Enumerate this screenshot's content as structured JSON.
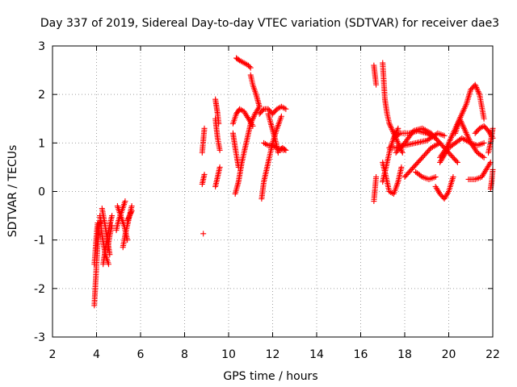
{
  "chart_data": {
    "type": "scatter",
    "title": "Day 337 of 2019, Sidereal Day-to-day VTEC variation (SDTVAR) for receiver dae3",
    "xlabel": "GPS time / hours",
    "ylabel": "SDTVAR / TECUs",
    "xlim": [
      2,
      22
    ],
    "ylim": [
      -3,
      3
    ],
    "xticks": [
      "2",
      "4",
      "6",
      "8",
      "10",
      "12",
      "14",
      "16",
      "18",
      "20",
      "22"
    ],
    "yticks": [
      "-3",
      "-2",
      "-1",
      "0",
      "1",
      "2",
      "3"
    ],
    "grid": true,
    "legend": "none",
    "marker": "+",
    "series_color": "#ff0000",
    "tracks": [
      {
        "name": "t1",
        "x": [
          3.9,
          4.0,
          4.1,
          4.2
        ],
        "y": [
          -2.35,
          -1.5,
          -0.7,
          -0.6
        ]
      },
      {
        "name": "t2",
        "x": [
          3.9,
          4.0,
          4.05
        ],
        "y": [
          -1.5,
          -0.9,
          -0.65
        ]
      },
      {
        "name": "t3",
        "x": [
          4.15,
          4.25,
          4.4,
          4.55
        ],
        "y": [
          -0.5,
          -0.9,
          -1.3,
          -1.5
        ]
      },
      {
        "name": "t4",
        "x": [
          4.25,
          4.35,
          4.5,
          4.6
        ],
        "y": [
          -0.35,
          -0.6,
          -1.0,
          -1.3
        ]
      },
      {
        "name": "t5",
        "x": [
          4.3,
          4.4,
          4.55,
          4.7
        ],
        "y": [
          -1.5,
          -1.2,
          -0.8,
          -0.5
        ]
      },
      {
        "name": "t6",
        "x": [
          4.5,
          4.6,
          4.7
        ],
        "y": [
          -1.2,
          -0.9,
          -0.7
        ]
      },
      {
        "name": "t7",
        "x": [
          4.9,
          5.0,
          5.15,
          5.3
        ],
        "y": [
          -0.8,
          -0.6,
          -0.4,
          -0.2
        ]
      },
      {
        "name": "t8",
        "x": [
          4.95,
          5.1,
          5.25,
          5.4
        ],
        "y": [
          -0.3,
          -0.5,
          -0.7,
          -1.0
        ]
      },
      {
        "name": "t9",
        "x": [
          5.2,
          5.3,
          5.45,
          5.6
        ],
        "y": [
          -1.15,
          -0.9,
          -0.6,
          -0.3
        ]
      },
      {
        "name": "t10",
        "x": [
          5.4,
          5.5,
          5.6
        ],
        "y": [
          -0.6,
          -0.5,
          -0.4
        ]
      },
      {
        "name": "t11",
        "x": [
          8.8,
          8.85,
          8.9
        ],
        "y": [
          0.15,
          0.25,
          0.35
        ]
      },
      {
        "name": "t12",
        "x": [
          8.8,
          8.85,
          8.9
        ],
        "y": [
          0.8,
          1.05,
          1.3
        ]
      },
      {
        "name": "t13",
        "x": [
          8.85
        ],
        "y": [
          -0.87
        ]
      },
      {
        "name": "t14",
        "x": [
          9.4,
          9.45,
          9.5,
          9.55
        ],
        "y": [
          1.9,
          1.75,
          1.6,
          1.4
        ]
      },
      {
        "name": "t15",
        "x": [
          9.4,
          9.5,
          9.6
        ],
        "y": [
          1.5,
          1.1,
          0.85
        ]
      },
      {
        "name": "t16",
        "x": [
          9.4,
          9.5,
          9.6
        ],
        "y": [
          0.1,
          0.3,
          0.5
        ]
      },
      {
        "name": "t17",
        "x": [
          10.2,
          10.35,
          10.5,
          10.7,
          10.9,
          11.1
        ],
        "y": [
          1.4,
          1.6,
          1.7,
          1.65,
          1.5,
          1.35
        ]
      },
      {
        "name": "t18",
        "x": [
          10.2,
          10.3,
          10.45
        ],
        "y": [
          1.2,
          0.9,
          0.5
        ]
      },
      {
        "name": "t19",
        "x": [
          10.3,
          10.45,
          10.6,
          10.8,
          11.0,
          11.2,
          11.4
        ],
        "y": [
          -0.05,
          0.2,
          0.6,
          1.0,
          1.4,
          1.6,
          1.75
        ]
      },
      {
        "name": "t20",
        "x": [
          10.35,
          10.5,
          10.7,
          10.9,
          11.0
        ],
        "y": [
          2.75,
          2.7,
          2.65,
          2.6,
          2.55
        ]
      },
      {
        "name": "t21",
        "x": [
          11.0,
          11.1,
          11.25,
          11.4
        ],
        "y": [
          2.4,
          2.2,
          2.0,
          1.75
        ]
      },
      {
        "name": "t22",
        "x": [
          11.5,
          11.6,
          11.8,
          12.0,
          12.2,
          12.4
        ],
        "y": [
          -0.15,
          0.2,
          0.6,
          1.0,
          1.3,
          1.55
        ]
      },
      {
        "name": "t23",
        "x": [
          11.4,
          11.6,
          11.8,
          12.0,
          12.2,
          12.4,
          12.6
        ],
        "y": [
          1.6,
          1.7,
          1.7,
          1.6,
          1.7,
          1.75,
          1.7
        ]
      },
      {
        "name": "t24",
        "x": [
          11.6,
          11.8,
          12.0,
          12.2,
          12.5
        ],
        "y": [
          1.0,
          0.95,
          0.95,
          0.9,
          0.85
        ]
      },
      {
        "name": "t25",
        "x": [
          11.8,
          11.95,
          12.1,
          12.25
        ],
        "y": [
          1.6,
          1.35,
          1.1,
          0.8
        ]
      },
      {
        "name": "t26",
        "x": [
          12.3,
          12.45,
          12.6
        ],
        "y": [
          0.85,
          0.9,
          0.85
        ]
      },
      {
        "name": "t27",
        "x": [
          16.6,
          16.65,
          16.7
        ],
        "y": [
          2.6,
          2.4,
          2.2
        ]
      },
      {
        "name": "t28",
        "x": [
          16.6,
          16.7
        ],
        "y": [
          -0.2,
          0.3
        ]
      },
      {
        "name": "t29",
        "x": [
          17.0,
          17.1,
          17.2,
          17.3,
          17.5,
          17.7,
          17.9
        ],
        "y": [
          2.65,
          1.9,
          1.6,
          1.4,
          1.2,
          1.0,
          0.8
        ]
      },
      {
        "name": "t30",
        "x": [
          17.0,
          17.1,
          17.2,
          17.35,
          17.5,
          17.7
        ],
        "y": [
          0.2,
          0.4,
          0.6,
          0.9,
          1.1,
          1.3
        ]
      },
      {
        "name": "t31",
        "x": [
          17.0,
          17.15,
          17.3,
          17.5,
          17.7,
          17.85
        ],
        "y": [
          0.6,
          0.3,
          0.0,
          -0.05,
          0.2,
          0.5
        ]
      },
      {
        "name": "t32",
        "x": [
          17.3,
          17.6,
          18.0,
          18.5,
          19.0,
          19.5,
          19.8
        ],
        "y": [
          0.9,
          0.9,
          0.95,
          1.0,
          1.05,
          1.2,
          1.15
        ]
      },
      {
        "name": "t33",
        "x": [
          17.5,
          17.8,
          18.2,
          18.6,
          19.0,
          19.4
        ],
        "y": [
          1.1,
          1.2,
          1.2,
          1.25,
          1.2,
          1.1
        ]
      },
      {
        "name": "t34",
        "x": [
          17.6,
          18.0,
          18.4,
          18.8,
          19.2,
          19.6,
          20.0,
          20.4
        ],
        "y": [
          0.8,
          1.0,
          1.25,
          1.3,
          1.2,
          1.0,
          0.8,
          0.6
        ]
      },
      {
        "name": "t35",
        "x": [
          18.0,
          18.4,
          18.8,
          19.2,
          19.6
        ],
        "y": [
          0.3,
          0.5,
          0.7,
          0.9,
          1.0
        ]
      },
      {
        "name": "t36",
        "x": [
          18.5,
          18.8,
          19.1,
          19.4
        ],
        "y": [
          0.4,
          0.3,
          0.25,
          0.3
        ]
      },
      {
        "name": "t37",
        "x": [
          19.4,
          19.6,
          19.8,
          20.0,
          20.2
        ],
        "y": [
          0.1,
          -0.05,
          -0.15,
          0.0,
          0.3
        ]
      },
      {
        "name": "t38",
        "x": [
          19.6,
          19.8,
          20.0,
          20.3,
          20.6,
          21.0,
          21.3,
          21.6
        ],
        "y": [
          0.6,
          0.75,
          0.9,
          1.0,
          1.1,
          1.0,
          0.95,
          1.0
        ]
      },
      {
        "name": "t39",
        "x": [
          19.6,
          19.9,
          20.2,
          20.5,
          20.8,
          21.0,
          21.2,
          21.4,
          21.6
        ],
        "y": [
          0.7,
          0.9,
          1.2,
          1.5,
          1.8,
          2.1,
          2.2,
          2.0,
          1.5
        ]
      },
      {
        "name": "t40",
        "x": [
          20.3,
          20.5,
          20.7,
          21.0,
          21.3,
          21.6
        ],
        "y": [
          1.2,
          1.5,
          1.3,
          1.0,
          0.8,
          0.7
        ]
      },
      {
        "name": "t41",
        "x": [
          20.9,
          21.2,
          21.5,
          21.7,
          21.9
        ],
        "y": [
          0.25,
          0.25,
          0.3,
          0.45,
          0.6
        ]
      },
      {
        "name": "t42",
        "x": [
          21.2,
          21.4,
          21.6,
          21.8,
          22.0
        ],
        "y": [
          1.2,
          1.3,
          1.35,
          1.25,
          1.1
        ]
      },
      {
        "name": "t43",
        "x": [
          21.8,
          21.9,
          22.0
        ],
        "y": [
          0.8,
          1.0,
          1.3
        ]
      },
      {
        "name": "t44",
        "x": [
          21.9,
          21.95,
          22.0
        ],
        "y": [
          0.05,
          0.2,
          0.45
        ]
      }
    ]
  }
}
